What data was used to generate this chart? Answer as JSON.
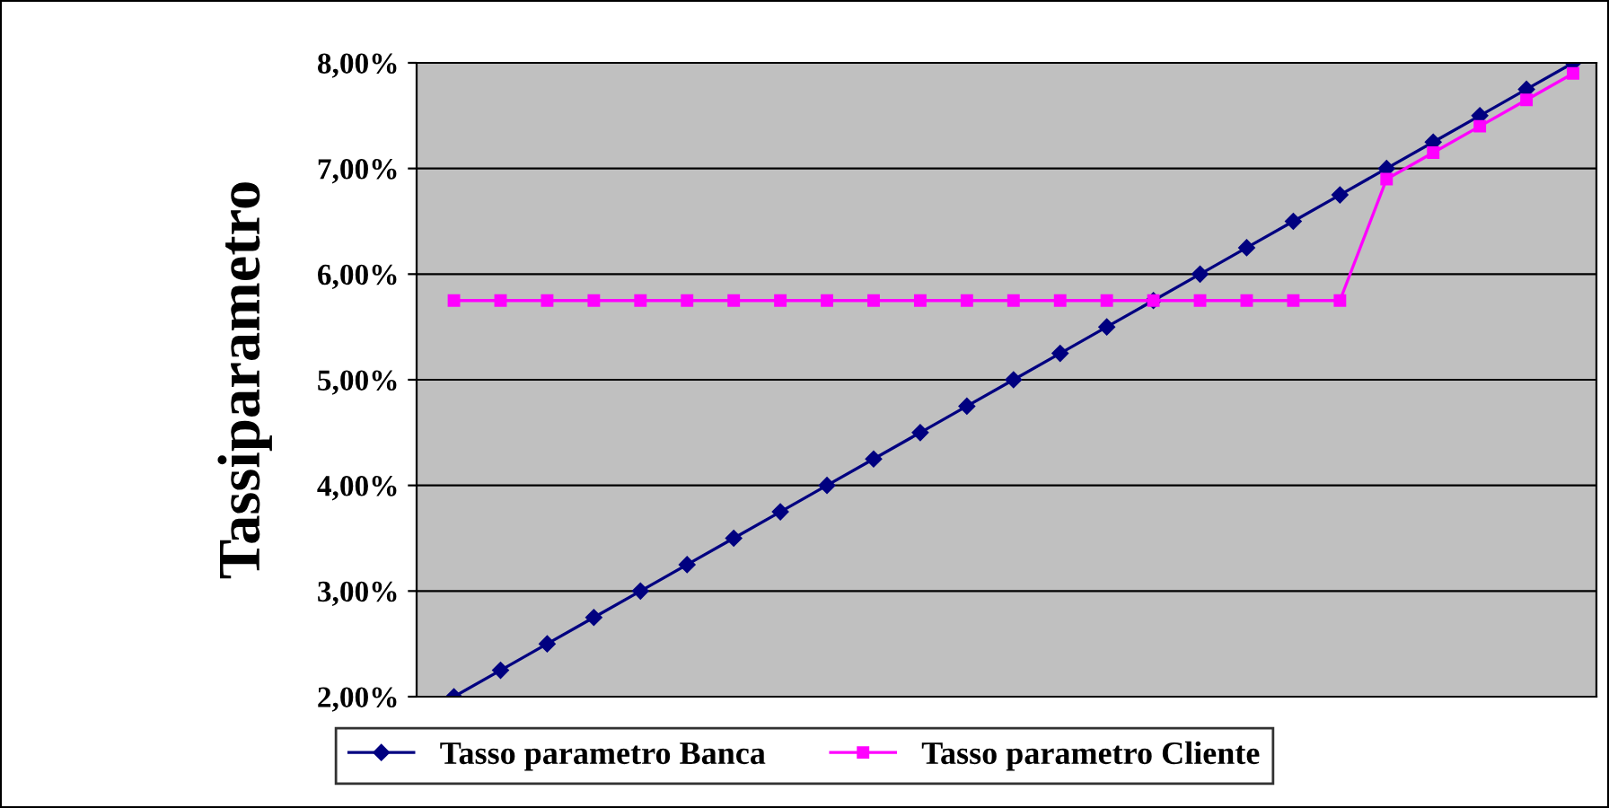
{
  "chart_data": {
    "type": "line",
    "ylabel": "Tassiparametro",
    "categories": [
      null,
      null,
      null,
      null,
      null,
      null,
      null,
      null,
      null,
      null,
      null,
      null,
      null,
      null,
      null,
      null,
      null,
      null,
      null,
      null,
      null,
      null,
      null,
      null,
      null
    ],
    "series": [
      {
        "name": "Tasso parametro Banca",
        "color": "#000080",
        "marker": "diamond",
        "values": [
          2.0,
          2.25,
          2.5,
          2.75,
          3.0,
          3.25,
          3.5,
          3.75,
          4.0,
          4.25,
          4.5,
          4.75,
          5.0,
          5.25,
          5.5,
          5.75,
          6.0,
          6.25,
          6.5,
          6.75,
          7.0,
          7.25,
          7.5,
          7.75,
          8.0
        ]
      },
      {
        "name": "Tasso parametro Cliente",
        "color": "#ff00ff",
        "marker": "square",
        "values": [
          5.75,
          5.75,
          5.75,
          5.75,
          5.75,
          5.75,
          5.75,
          5.75,
          5.75,
          5.75,
          5.75,
          5.75,
          5.75,
          5.75,
          5.75,
          5.75,
          5.75,
          5.75,
          5.75,
          5.75,
          6.9,
          7.15,
          7.4,
          7.65,
          7.9
        ]
      }
    ],
    "ylim": [
      2,
      8
    ],
    "yticks": [
      {
        "value": 2,
        "label": "2,00%"
      },
      {
        "value": 3,
        "label": "3,00%"
      },
      {
        "value": 4,
        "label": "4,00%"
      },
      {
        "value": 5,
        "label": "5,00%"
      },
      {
        "value": 6,
        "label": "6,00%"
      },
      {
        "value": 7,
        "label": "7,00%"
      },
      {
        "value": 8,
        "label": "8,00%"
      }
    ],
    "grid": "y",
    "legend": "bottom",
    "tick_labels": "y",
    "line_style": "solid"
  }
}
